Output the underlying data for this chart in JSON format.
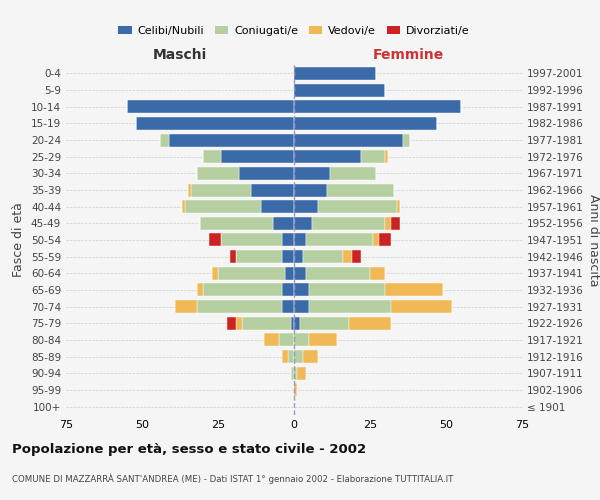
{
  "age_groups": [
    "0-4",
    "5-9",
    "10-14",
    "15-19",
    "20-24",
    "25-29",
    "30-34",
    "35-39",
    "40-44",
    "45-49",
    "50-54",
    "55-59",
    "60-64",
    "65-69",
    "70-74",
    "75-79",
    "80-84",
    "85-89",
    "90-94",
    "95-99",
    "100+"
  ],
  "birth_years": [
    "1997-2001",
    "1992-1996",
    "1987-1991",
    "1982-1986",
    "1977-1981",
    "1972-1976",
    "1967-1971",
    "1962-1966",
    "1957-1961",
    "1952-1956",
    "1947-1951",
    "1942-1946",
    "1937-1941",
    "1932-1936",
    "1927-1931",
    "1922-1926",
    "1917-1921",
    "1912-1916",
    "1907-1911",
    "1902-1906",
    "≤ 1901"
  ],
  "maschi": {
    "celibi": [
      0,
      0,
      55,
      52,
      41,
      24,
      18,
      14,
      11,
      7,
      4,
      4,
      3,
      4,
      4,
      1,
      0,
      0,
      0,
      0,
      0
    ],
    "coniugati": [
      0,
      0,
      0,
      0,
      3,
      6,
      14,
      20,
      25,
      24,
      20,
      15,
      22,
      26,
      28,
      16,
      5,
      2,
      1,
      0,
      0
    ],
    "vedovi": [
      0,
      0,
      0,
      0,
      0,
      0,
      0,
      1,
      1,
      0,
      0,
      0,
      2,
      2,
      7,
      2,
      5,
      2,
      0,
      0,
      0
    ],
    "divorziati": [
      0,
      0,
      0,
      0,
      0,
      0,
      0,
      0,
      0,
      0,
      4,
      2,
      0,
      0,
      0,
      3,
      0,
      0,
      0,
      0,
      0
    ]
  },
  "femmine": {
    "nubili": [
      27,
      30,
      55,
      47,
      36,
      22,
      12,
      11,
      8,
      6,
      4,
      3,
      4,
      5,
      5,
      2,
      0,
      0,
      0,
      0,
      0
    ],
    "coniugate": [
      0,
      0,
      0,
      0,
      2,
      8,
      15,
      22,
      26,
      24,
      22,
      13,
      21,
      25,
      27,
      16,
      5,
      3,
      1,
      0,
      0
    ],
    "vedove": [
      0,
      0,
      0,
      0,
      0,
      1,
      0,
      0,
      1,
      2,
      2,
      3,
      5,
      19,
      20,
      14,
      9,
      5,
      3,
      1,
      0
    ],
    "divorziate": [
      0,
      0,
      0,
      0,
      0,
      0,
      0,
      0,
      0,
      3,
      4,
      3,
      0,
      0,
      0,
      0,
      0,
      0,
      0,
      0,
      0
    ]
  },
  "colors": {
    "celibi": "#3a6aa8",
    "coniugati": "#b5cfa0",
    "vedovi": "#f0b955",
    "divorziati": "#cc2222"
  },
  "xlim": 75,
  "title": "Popolazione per età, sesso e stato civile - 2002",
  "subtitle": "COMUNE DI MAZZARRÀ SANT'ANDREA (ME) - Dati ISTAT 1° gennaio 2002 - Elaborazione TUTTITALIA.IT",
  "ylabel": "Fasce di età",
  "ylabel_right": "Anni di nascita",
  "xlabel_left": "Maschi",
  "xlabel_right": "Femmine",
  "bg_color": "#f5f5f5",
  "grid_color": "#cccccc"
}
